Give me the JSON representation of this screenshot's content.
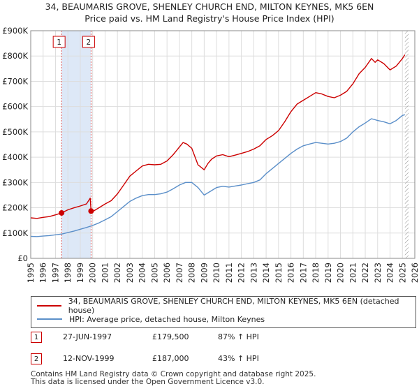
{
  "title_line1": "34, BEAUMARIS GROVE, SHENLEY CHURCH END, MILTON KEYNES, MK5 6EN",
  "title_line2": "Price paid vs. HM Land Registry's House Price Index (HPI)",
  "colors": {
    "property": "#cc0000",
    "hpi": "#5b8fc9",
    "shade": "#dde8f7",
    "grid": "#dddddd",
    "hatch": "#888888"
  },
  "chart_data": {
    "type": "line",
    "xlim": [
      1995,
      2026
    ],
    "ylim": [
      0,
      900000
    ],
    "x_ticks": [
      1995,
      1996,
      1997,
      1998,
      1999,
      2000,
      2001,
      2002,
      2003,
      2004,
      2005,
      2006,
      2007,
      2008,
      2009,
      2010,
      2011,
      2012,
      2013,
      2014,
      2015,
      2016,
      2017,
      2018,
      2019,
      2020,
      2021,
      2022,
      2023,
      2024,
      2025,
      2026
    ],
    "y_ticks": [
      {
        "value": 0,
        "label": "£0"
      },
      {
        "value": 100000,
        "label": "£100K"
      },
      {
        "value": 200000,
        "label": "£200K"
      },
      {
        "value": 300000,
        "label": "£300K"
      },
      {
        "value": 400000,
        "label": "£400K"
      },
      {
        "value": 500000,
        "label": "£500K"
      },
      {
        "value": 600000,
        "label": "£600K"
      },
      {
        "value": 700000,
        "label": "£700K"
      },
      {
        "value": 800000,
        "label": "£800K"
      },
      {
        "value": 900000,
        "label": "£900K"
      }
    ],
    "shaded_range": [
      1997.49,
      1999.87
    ],
    "forecast_start": 2025.2,
    "series": [
      {
        "name": "34, BEAUMARIS GROVE, SHENLEY CHURCH END, MILTON KEYNES, MK5 6EN (detached house)",
        "x": [
          1995,
          1995.5,
          1996,
          1996.5,
          1997,
          1997.49,
          1998,
          1998.5,
          1999,
          1999.5,
          1999.8,
          1999.87,
          2000,
          2000.5,
          2001,
          2001.5,
          2002,
          2002.5,
          2003,
          2003.5,
          2004,
          2004.5,
          2005,
          2005.5,
          2006,
          2006.5,
          2007,
          2007.3,
          2007.6,
          2008,
          2008.5,
          2009,
          2009.3,
          2009.6,
          2010,
          2010.5,
          2011,
          2011.5,
          2012,
          2012.5,
          2013,
          2013.5,
          2014,
          2014.5,
          2015,
          2015.5,
          2016,
          2016.5,
          2017,
          2017.5,
          2018,
          2018.5,
          2019,
          2019.5,
          2020,
          2020.5,
          2021,
          2021.5,
          2022,
          2022.5,
          2022.8,
          2023,
          2023.5,
          2024,
          2024.5,
          2025,
          2025.2
        ],
        "y": [
          160000,
          158000,
          162000,
          165000,
          172000,
          179500,
          192000,
          200000,
          207000,
          215000,
          238000,
          187000,
          185000,
          200000,
          215000,
          228000,
          255000,
          290000,
          325000,
          345000,
          365000,
          372000,
          370000,
          372000,
          385000,
          410000,
          440000,
          458000,
          452000,
          435000,
          370000,
          350000,
          375000,
          392000,
          405000,
          410000,
          402000,
          408000,
          415000,
          422000,
          432000,
          445000,
          470000,
          485000,
          505000,
          540000,
          580000,
          610000,
          625000,
          640000,
          655000,
          650000,
          640000,
          635000,
          645000,
          660000,
          690000,
          730000,
          755000,
          790000,
          775000,
          785000,
          770000,
          745000,
          760000,
          790000,
          805000
        ]
      },
      {
        "name": "HPI: Average price, detached house, Milton Keynes",
        "x": [
          1995,
          1995.5,
          1996,
          1996.5,
          1997,
          1997.5,
          1998,
          1998.5,
          1999,
          1999.5,
          2000,
          2000.5,
          2001,
          2001.5,
          2002,
          2002.5,
          2003,
          2003.5,
          2004,
          2004.5,
          2005,
          2005.5,
          2006,
          2006.5,
          2007,
          2007.5,
          2008,
          2008.5,
          2009,
          2009.5,
          2010,
          2010.5,
          2011,
          2011.5,
          2012,
          2012.5,
          2013,
          2013.5,
          2014,
          2014.5,
          2015,
          2015.5,
          2016,
          2016.5,
          2017,
          2017.5,
          2018,
          2018.5,
          2019,
          2019.5,
          2020,
          2020.5,
          2021,
          2021.5,
          2022,
          2022.5,
          2022.8,
          2023,
          2023.5,
          2024,
          2024.5,
          2025,
          2025.2
        ],
        "y": [
          87000,
          86000,
          88000,
          90000,
          93000,
          96000,
          102000,
          108000,
          115000,
          122000,
          130000,
          140000,
          152000,
          165000,
          185000,
          205000,
          225000,
          238000,
          248000,
          252000,
          252000,
          255000,
          262000,
          275000,
          290000,
          300000,
          300000,
          280000,
          250000,
          265000,
          280000,
          285000,
          282000,
          286000,
          290000,
          295000,
          300000,
          310000,
          335000,
          355000,
          375000,
          395000,
          415000,
          432000,
          445000,
          452000,
          458000,
          455000,
          452000,
          455000,
          462000,
          475000,
          500000,
          520000,
          535000,
          552000,
          548000,
          545000,
          540000,
          532000,
          545000,
          565000,
          568000
        ]
      }
    ],
    "markers": [
      {
        "label": "1",
        "x": 1997.49,
        "y": 179500
      },
      {
        "label": "2",
        "x": 1999.87,
        "y": 187000
      }
    ]
  },
  "legend": {
    "property": "34, BEAUMARIS GROVE, SHENLEY CHURCH END, MILTON KEYNES, MK5 6EN (detached house)",
    "hpi": "HPI: Average price, detached house, Milton Keynes"
  },
  "transactions": [
    {
      "num": "1",
      "date": "27-JUN-1997",
      "price": "£179,500",
      "hpi": "87% ↑ HPI"
    },
    {
      "num": "2",
      "date": "12-NOV-1999",
      "price": "£187,000",
      "hpi": "43% ↑ HPI"
    }
  ],
  "footer_line1": "Contains HM Land Registry data © Crown copyright and database right 2025.",
  "footer_line2": "This data is licensed under the Open Government Licence v3.0."
}
